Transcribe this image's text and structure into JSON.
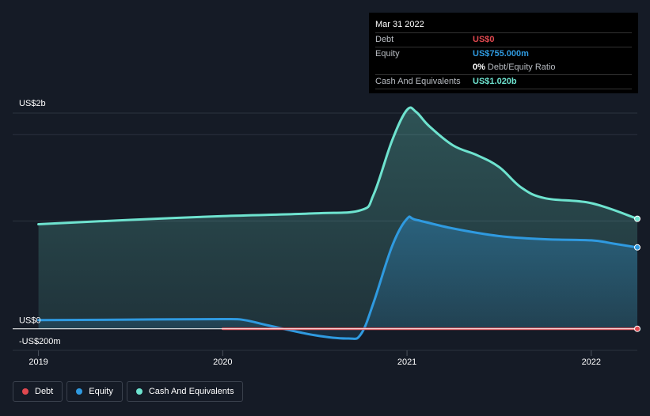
{
  "tooltip": {
    "date": "Mar 31 2022",
    "debt_label": "Debt",
    "debt_value": "US$0",
    "equity_label": "Equity",
    "equity_value": "US$755.000m",
    "ratio_pct": "0%",
    "ratio_label": "Debt/Equity Ratio",
    "cash_label": "Cash And Equivalents",
    "cash_value": "US$1.020b"
  },
  "legend": [
    {
      "label": "Debt",
      "color": "#e0484f"
    },
    {
      "label": "Equity",
      "color": "#2f9ae0"
    },
    {
      "label": "Cash And Equivalents",
      "color": "#6ee3cf"
    }
  ],
  "colors": {
    "debt": "#e0484f",
    "equity": "#2f9ae0",
    "cash": "#6ee3cf",
    "background": "#151b26"
  },
  "chart_data": {
    "type": "area",
    "x_unit": "year",
    "y_unit": "US$ millions",
    "ylim": [
      -200,
      2000
    ],
    "ytick_labels": [
      {
        "value": 2000,
        "label": "US$2b"
      },
      {
        "value": 0,
        "label": "US$0"
      },
      {
        "value": -200,
        "label": "-US$200m"
      }
    ],
    "xticks": [
      {
        "value": 2019.0,
        "label": "2019"
      },
      {
        "value": 2020.0,
        "label": "2020"
      },
      {
        "value": 2021.0,
        "label": "2021"
      },
      {
        "value": 2022.0,
        "label": "2022"
      }
    ],
    "xlim": [
      2018.86,
      2022.25
    ],
    "gridlines": [
      2000,
      1800,
      1000,
      -200
    ],
    "series": [
      {
        "name": "Cash And Equivalents",
        "key": "cash",
        "x": [
          2019.0,
          2019.5,
          2020.0,
          2020.5,
          2020.75,
          2020.82,
          2020.92,
          2021.0,
          2021.05,
          2021.12,
          2021.25,
          2021.38,
          2021.5,
          2021.62,
          2021.75,
          2022.0,
          2022.25
        ],
        "y": [
          970,
          1010,
          1045,
          1070,
          1100,
          1250,
          1750,
          2030,
          2010,
          1880,
          1700,
          1610,
          1500,
          1310,
          1210,
          1165,
          1020
        ]
      },
      {
        "name": "Equity",
        "key": "equity",
        "x": [
          2019.0,
          2019.5,
          2020.0,
          2020.12,
          2020.25,
          2020.5,
          2020.68,
          2020.75,
          2020.82,
          2020.92,
          2021.0,
          2021.05,
          2021.25,
          2021.5,
          2021.75,
          2022.0,
          2022.12,
          2022.25
        ],
        "y": [
          80,
          85,
          90,
          80,
          30,
          -60,
          -90,
          -50,
          250,
          770,
          1020,
          1010,
          930,
          860,
          830,
          820,
          790,
          755
        ]
      },
      {
        "name": "Debt",
        "key": "debt",
        "x": [
          2020.0,
          2022.25
        ],
        "y": [
          0,
          0
        ]
      }
    ]
  }
}
